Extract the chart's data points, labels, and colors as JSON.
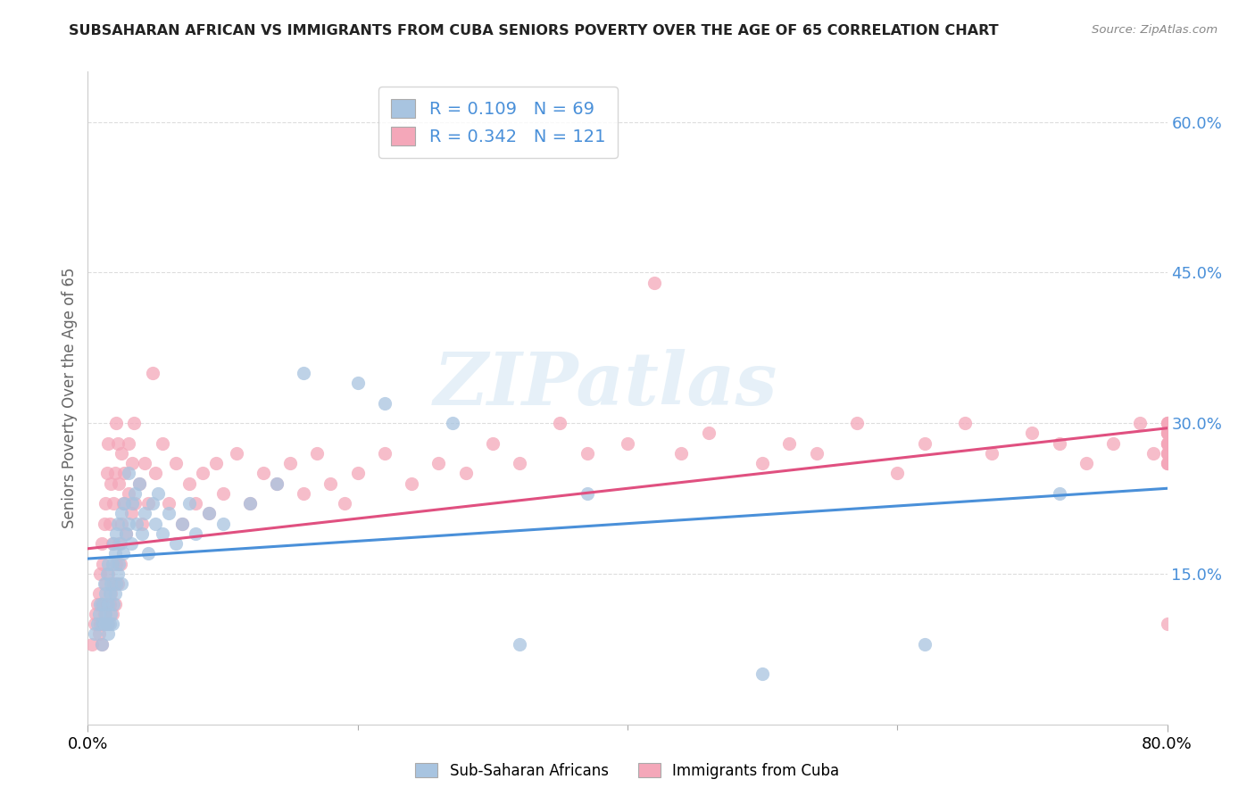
{
  "title": "SUBSAHARAN AFRICAN VS IMMIGRANTS FROM CUBA SENIORS POVERTY OVER THE AGE OF 65 CORRELATION CHART",
  "source": "Source: ZipAtlas.com",
  "ylabel": "Seniors Poverty Over the Age of 65",
  "xmin": 0.0,
  "xmax": 0.8,
  "ymin": 0.0,
  "ymax": 0.65,
  "yticks": [
    0.15,
    0.3,
    0.45,
    0.6
  ],
  "ytick_labels": [
    "15.0%",
    "30.0%",
    "45.0%",
    "60.0%"
  ],
  "xtick_labels": [
    "0.0%",
    "80.0%"
  ],
  "blue_R": 0.109,
  "blue_N": 69,
  "pink_R": 0.342,
  "pink_N": 121,
  "blue_color": "#a8c4e0",
  "pink_color": "#f4a7b9",
  "blue_line_color": "#4a90d9",
  "pink_line_color": "#e05080",
  "legend_label_blue": "Sub-Saharan Africans",
  "legend_label_pink": "Immigrants from Cuba",
  "watermark": "ZIPatlas",
  "blue_scatter_x": [
    0.005,
    0.007,
    0.008,
    0.009,
    0.01,
    0.01,
    0.011,
    0.012,
    0.012,
    0.013,
    0.013,
    0.014,
    0.014,
    0.015,
    0.015,
    0.015,
    0.016,
    0.016,
    0.017,
    0.017,
    0.018,
    0.018,
    0.019,
    0.019,
    0.02,
    0.02,
    0.021,
    0.021,
    0.022,
    0.022,
    0.023,
    0.024,
    0.025,
    0.025,
    0.026,
    0.027,
    0.028,
    0.03,
    0.03,
    0.032,
    0.033,
    0.035,
    0.036,
    0.038,
    0.04,
    0.042,
    0.045,
    0.048,
    0.05,
    0.052,
    0.055,
    0.06,
    0.065,
    0.07,
    0.075,
    0.08,
    0.09,
    0.1,
    0.12,
    0.14,
    0.16,
    0.2,
    0.22,
    0.27,
    0.32,
    0.37,
    0.5,
    0.62,
    0.72
  ],
  "blue_scatter_y": [
    0.09,
    0.1,
    0.11,
    0.12,
    0.08,
    0.1,
    0.12,
    0.1,
    0.14,
    0.11,
    0.13,
    0.1,
    0.15,
    0.09,
    0.12,
    0.16,
    0.1,
    0.13,
    0.11,
    0.14,
    0.1,
    0.16,
    0.12,
    0.18,
    0.13,
    0.17,
    0.14,
    0.19,
    0.15,
    0.2,
    0.16,
    0.18,
    0.14,
    0.21,
    0.17,
    0.22,
    0.19,
    0.2,
    0.25,
    0.18,
    0.22,
    0.23,
    0.2,
    0.24,
    0.19,
    0.21,
    0.17,
    0.22,
    0.2,
    0.23,
    0.19,
    0.21,
    0.18,
    0.2,
    0.22,
    0.19,
    0.21,
    0.2,
    0.22,
    0.24,
    0.35,
    0.34,
    0.32,
    0.3,
    0.08,
    0.23,
    0.05,
    0.08,
    0.23
  ],
  "pink_scatter_x": [
    0.003,
    0.005,
    0.006,
    0.007,
    0.008,
    0.008,
    0.009,
    0.009,
    0.01,
    0.01,
    0.01,
    0.011,
    0.011,
    0.012,
    0.012,
    0.013,
    0.013,
    0.013,
    0.014,
    0.014,
    0.015,
    0.015,
    0.015,
    0.016,
    0.016,
    0.017,
    0.017,
    0.018,
    0.018,
    0.019,
    0.019,
    0.02,
    0.02,
    0.021,
    0.021,
    0.022,
    0.022,
    0.023,
    0.023,
    0.024,
    0.025,
    0.025,
    0.026,
    0.027,
    0.028,
    0.03,
    0.03,
    0.032,
    0.033,
    0.034,
    0.035,
    0.038,
    0.04,
    0.042,
    0.045,
    0.048,
    0.05,
    0.055,
    0.06,
    0.065,
    0.07,
    0.075,
    0.08,
    0.085,
    0.09,
    0.095,
    0.1,
    0.11,
    0.12,
    0.13,
    0.14,
    0.15,
    0.16,
    0.17,
    0.18,
    0.19,
    0.2,
    0.22,
    0.24,
    0.26,
    0.28,
    0.3,
    0.32,
    0.35,
    0.37,
    0.4,
    0.42,
    0.44,
    0.46,
    0.5,
    0.52,
    0.54,
    0.57,
    0.6,
    0.62,
    0.65,
    0.67,
    0.7,
    0.72,
    0.74,
    0.76,
    0.78,
    0.79,
    0.8,
    0.8,
    0.8,
    0.8,
    0.8,
    0.8,
    0.8,
    0.8,
    0.8,
    0.8,
    0.8,
    0.8,
    0.8,
    0.8,
    0.8,
    0.8,
    0.8,
    0.8
  ],
  "pink_scatter_y": [
    0.08,
    0.1,
    0.11,
    0.12,
    0.09,
    0.13,
    0.1,
    0.15,
    0.08,
    0.12,
    0.18,
    0.1,
    0.16,
    0.11,
    0.2,
    0.1,
    0.14,
    0.22,
    0.12,
    0.25,
    0.1,
    0.15,
    0.28,
    0.12,
    0.2,
    0.13,
    0.24,
    0.11,
    0.18,
    0.14,
    0.22,
    0.12,
    0.25,
    0.16,
    0.3,
    0.14,
    0.28,
    0.18,
    0.24,
    0.16,
    0.2,
    0.27,
    0.22,
    0.25,
    0.19,
    0.23,
    0.28,
    0.21,
    0.26,
    0.3,
    0.22,
    0.24,
    0.2,
    0.26,
    0.22,
    0.35,
    0.25,
    0.28,
    0.22,
    0.26,
    0.2,
    0.24,
    0.22,
    0.25,
    0.21,
    0.26,
    0.23,
    0.27,
    0.22,
    0.25,
    0.24,
    0.26,
    0.23,
    0.27,
    0.24,
    0.22,
    0.25,
    0.27,
    0.24,
    0.26,
    0.25,
    0.28,
    0.26,
    0.3,
    0.27,
    0.28,
    0.44,
    0.27,
    0.29,
    0.26,
    0.28,
    0.27,
    0.3,
    0.25,
    0.28,
    0.3,
    0.27,
    0.29,
    0.28,
    0.26,
    0.28,
    0.3,
    0.27,
    0.29,
    0.26,
    0.28,
    0.3,
    0.27,
    0.29,
    0.28,
    0.26,
    0.3,
    0.27,
    0.29,
    0.28,
    0.26,
    0.3,
    0.28,
    0.29,
    0.27,
    0.1
  ],
  "blue_line_start_y": 0.165,
  "blue_line_end_y": 0.235,
  "pink_line_start_y": 0.175,
  "pink_line_end_y": 0.295
}
